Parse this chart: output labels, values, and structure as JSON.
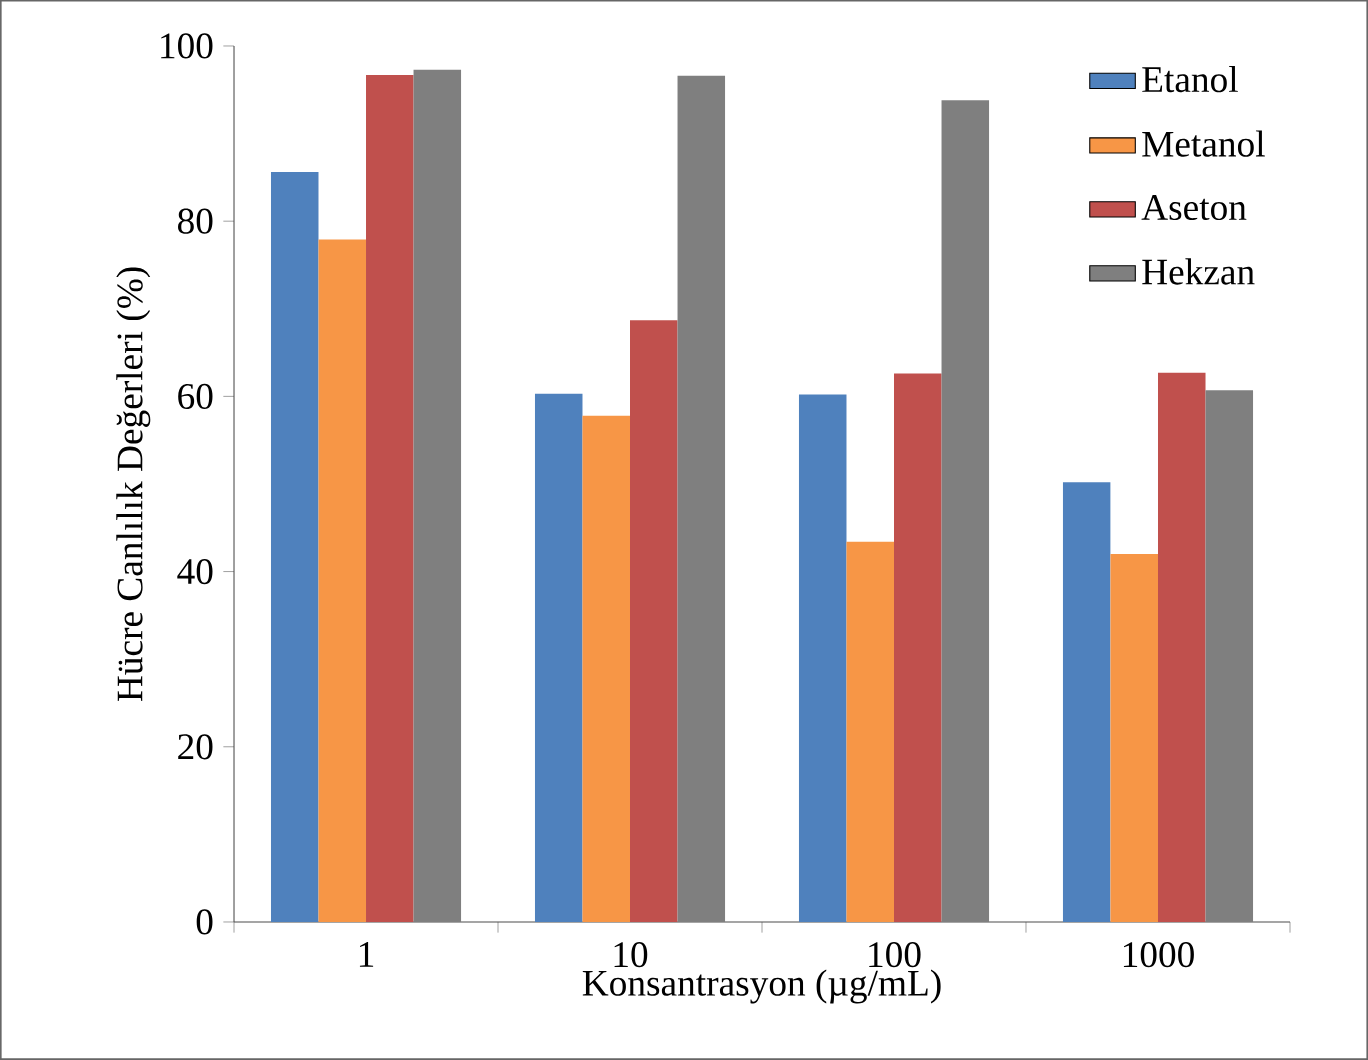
{
  "chart_data": {
    "type": "bar",
    "xlabel": "Konsantrasyon (µg/mL)",
    "ylabel": "Hücre Canlılık Değerleri (%)",
    "categories": [
      "1",
      "10",
      "100",
      "1000"
    ],
    "series": [
      {
        "name": "Etanol",
        "color": "#4f81bd",
        "values": [
          85.6,
          60.3,
          60.2,
          50.2
        ]
      },
      {
        "name": "Metanol",
        "color": "#f79646",
        "values": [
          77.9,
          57.8,
          43.4,
          42.0
        ]
      },
      {
        "name": "Aseton",
        "color": "#c0504d",
        "values": [
          96.7,
          68.7,
          62.6,
          62.7
        ]
      },
      {
        "name": "Hekzan",
        "color": "#7f7f7f",
        "values": [
          97.3,
          96.6,
          93.8,
          60.7
        ]
      }
    ],
    "ylim": [
      0,
      100
    ],
    "yticks": [
      0,
      20,
      40,
      60,
      80,
      100
    ],
    "grid": false,
    "legend": "top right"
  }
}
